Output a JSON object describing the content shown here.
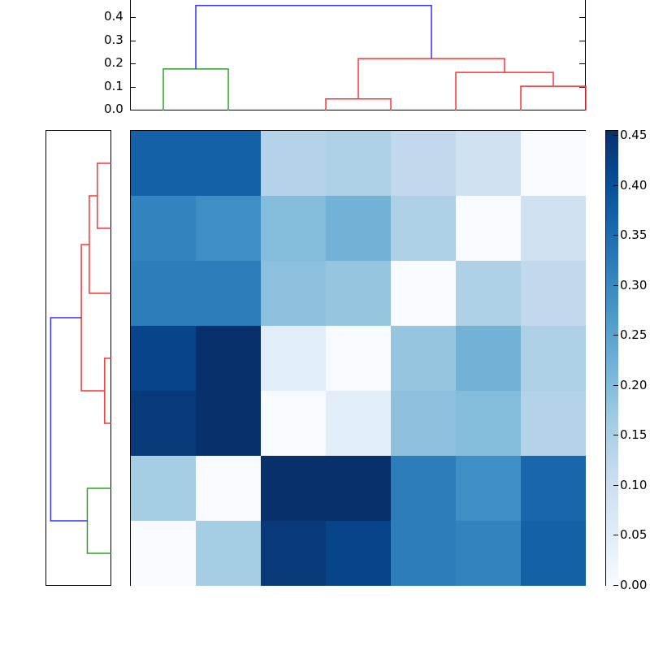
{
  "chart_data": [
    {
      "type": "heatmap",
      "title": "",
      "xlabel": "",
      "ylabel": "",
      "rows": 7,
      "cols": 7,
      "values": [
        [
          0.37,
          0.37,
          0.14,
          0.15,
          0.12,
          0.09,
          0.0
        ],
        [
          0.31,
          0.29,
          0.2,
          0.22,
          0.15,
          0.0,
          0.09
        ],
        [
          0.32,
          0.32,
          0.19,
          0.18,
          0.0,
          0.15,
          0.12
        ],
        [
          0.42,
          0.455,
          0.05,
          0.0,
          0.18,
          0.22,
          0.15
        ],
        [
          0.44,
          0.455,
          0.0,
          0.05,
          0.19,
          0.2,
          0.14
        ],
        [
          0.16,
          0.0,
          0.455,
          0.455,
          0.32,
          0.29,
          0.36
        ],
        [
          0.0,
          0.16,
          0.44,
          0.42,
          0.32,
          0.31,
          0.37
        ]
      ],
      "colormap": "Blues",
      "vmin": 0.0,
      "vmax": 0.455,
      "colorbar": {
        "ticks": [
          "0.00",
          "0.05",
          "0.10",
          "0.15",
          "0.20",
          "0.25",
          "0.30",
          "0.35",
          "0.40",
          "0.45"
        ],
        "position": "right"
      }
    },
    {
      "type": "dendrogram",
      "orientation": "top",
      "yticks": [
        "0.0",
        "0.1",
        "0.2",
        "0.3",
        "0.4"
      ],
      "ylim": [
        0.0,
        0.47
      ],
      "links": [
        {
          "x": [
            1,
            1,
            2,
            2
          ],
          "y": [
            0.0,
            0.18,
            0.18,
            0.0
          ],
          "color": "#2ca02c"
        },
        {
          "x": [
            3.5,
            3.5,
            4.5,
            4.5
          ],
          "y": [
            0.0,
            0.05,
            0.05,
            0.0
          ],
          "color": "#ff3333"
        },
        {
          "x": [
            6.5,
            6.5,
            7.5,
            7.5
          ],
          "y": [
            0.0,
            0.105,
            0.105,
            0.0
          ],
          "color": "#ff3333"
        },
        {
          "x": [
            5.5,
            5.5,
            7.0,
            7.0
          ],
          "y": [
            0.0,
            0.165,
            0.165,
            0.105
          ],
          "color": "#ff3333"
        },
        {
          "x": [
            4.0,
            4.0,
            6.25,
            6.25
          ],
          "y": [
            0.05,
            0.225,
            0.225,
            0.165
          ],
          "color": "#ff3333"
        },
        {
          "x": [
            1.5,
            1.5,
            5.125,
            5.125
          ],
          "y": [
            0.18,
            0.455,
            0.455,
            0.225
          ],
          "color": "#3333ff"
        }
      ]
    },
    {
      "type": "dendrogram",
      "orientation": "left",
      "xlim": [
        0.47,
        0.0
      ],
      "links": [
        {
          "leaf_y": [
            0.5,
            1.5
          ],
          "x": 0.105,
          "color": "#ff3333"
        },
        {
          "leaf_y": [
            1.0,
            2.5
          ],
          "x": 0.165,
          "color": "#ff3333"
        },
        {
          "leaf_y": [
            3.5,
            4.5
          ],
          "x": 0.05,
          "color": "#ff3333"
        },
        {
          "leaf_y": [
            1.75,
            4.0
          ],
          "x": 0.225,
          "color": "#ff3333"
        },
        {
          "leaf_y": [
            5.5,
            6.5
          ],
          "x": 0.18,
          "color": "#2ca02c"
        },
        {
          "leaf_y": [
            2.875,
            6.0
          ],
          "x": 0.455,
          "color": "#3333ff"
        }
      ]
    }
  ],
  "colors": {
    "red_link": "#ff3333",
    "green_link": "#2ca02c",
    "blue_link": "#3333ff"
  },
  "top_axis": {
    "tick_labels": [
      "0.0",
      "0.1",
      "0.2",
      "0.3",
      "0.4"
    ]
  },
  "colorbar": {
    "tick_labels": [
      "0.00",
      "0.05",
      "0.10",
      "0.15",
      "0.20",
      "0.25",
      "0.30",
      "0.35",
      "0.40",
      "0.45"
    ]
  }
}
